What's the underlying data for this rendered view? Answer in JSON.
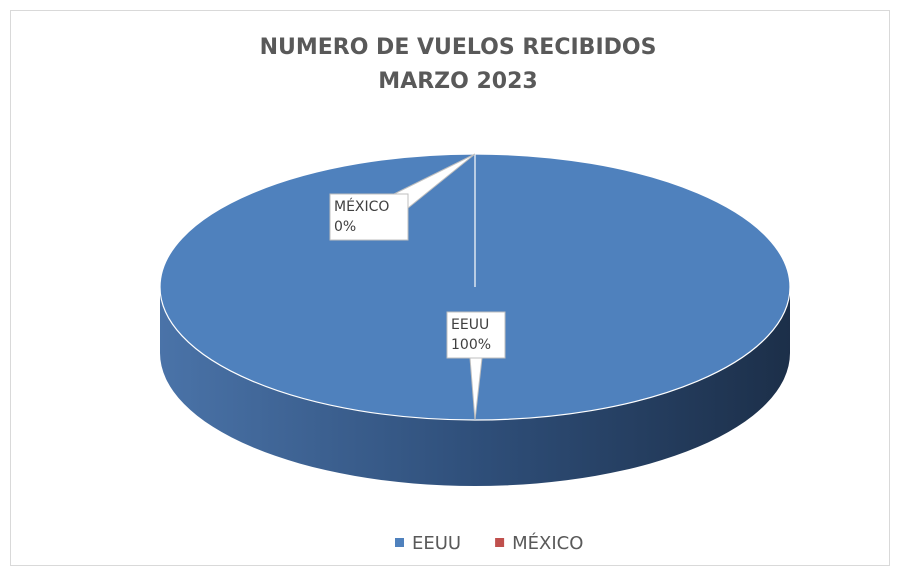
{
  "chart_data": {
    "type": "pie",
    "title": "NUMERO DE VUELOS RECIBIDOS",
    "subtitle": "MARZO 2023",
    "categories": [
      "EEUU",
      "MÉXICO"
    ],
    "values": [
      100,
      0
    ],
    "value_labels": [
      "100%",
      "0%"
    ],
    "colors": [
      "#4f81bd",
      "#c0504d"
    ],
    "legend": "bottom",
    "style": "3d"
  }
}
